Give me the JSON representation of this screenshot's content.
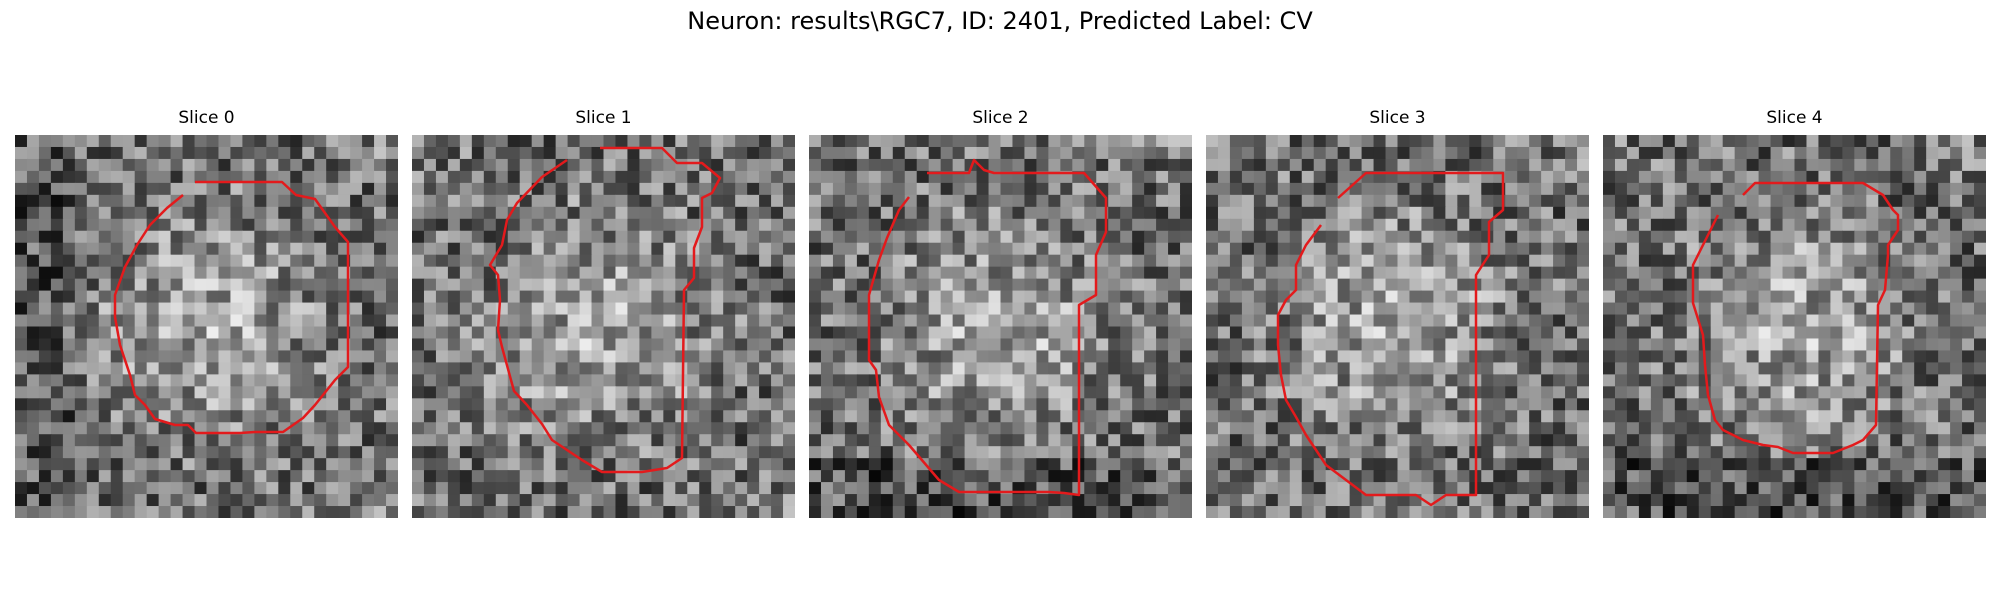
{
  "figure": {
    "title": "Neuron: results\\RGC7, ID: 2401, Predicted Label: CV",
    "panels": [
      {
        "title": "Slice 0",
        "outline_color": "#e31a1c"
      },
      {
        "title": "Slice 1",
        "outline_color": "#e31a1c"
      },
      {
        "title": "Slice 2",
        "outline_color": "#e31a1c"
      },
      {
        "title": "Slice 3",
        "outline_color": "#e31a1c"
      },
      {
        "title": "Slice 4",
        "outline_color": "#e31a1c"
      }
    ]
  }
}
